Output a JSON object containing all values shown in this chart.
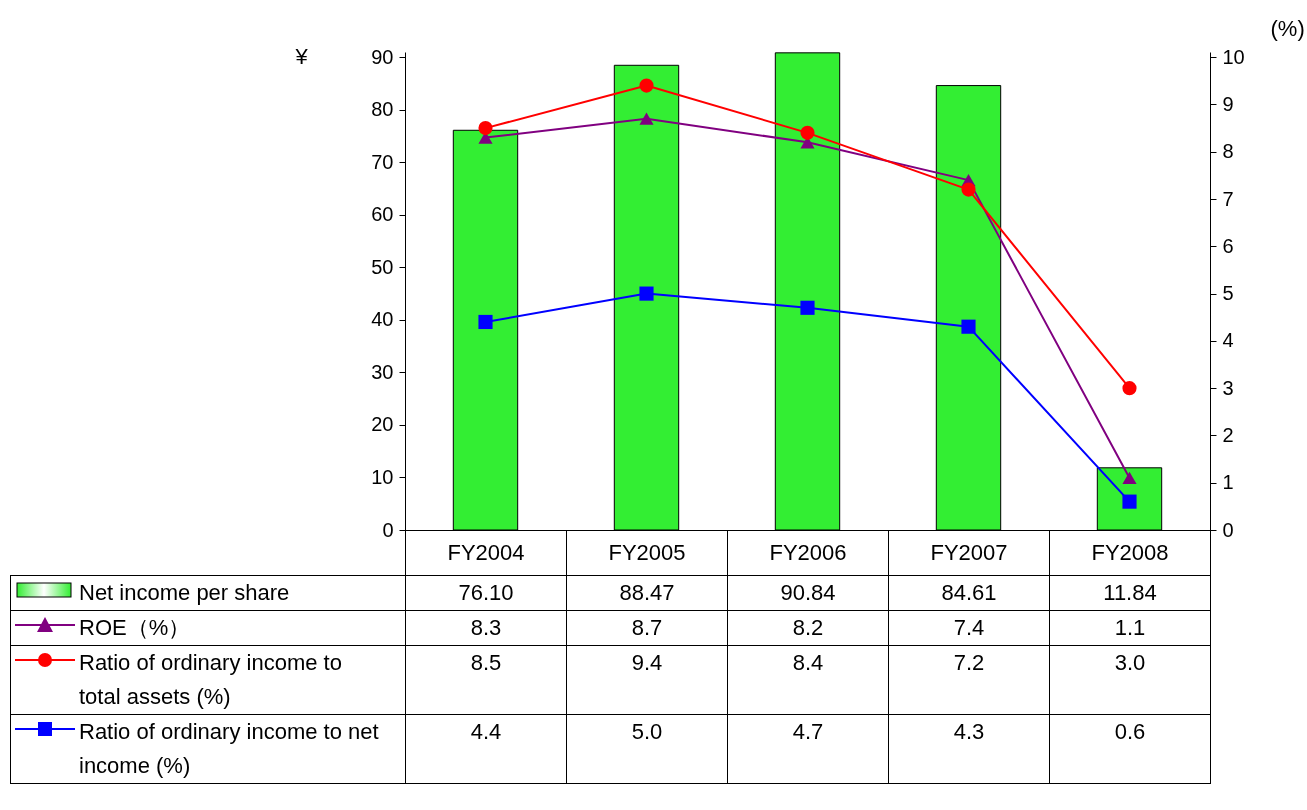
{
  "chart_data": {
    "type": "bar",
    "categories": [
      "FY2004",
      "FY2005",
      "FY2006",
      "FY2007",
      "FY2008"
    ],
    "ylabel": "¥",
    "y2label": "(%)",
    "ylim": [
      0,
      91
    ],
    "yticks": [
      0,
      10,
      20,
      30,
      40,
      50,
      60,
      70,
      80,
      90
    ],
    "y2lim": [
      0,
      10.11
    ],
    "y2ticks": [
      0,
      1,
      2,
      3,
      4,
      5,
      6,
      7,
      8,
      9,
      10
    ],
    "grid": false,
    "legend": "bottom",
    "series": [
      {
        "name": "Net income per share",
        "color": "#33ee33",
        "values": [
          76.1,
          88.47,
          90.84,
          84.61,
          11.84
        ],
        "value_labels": [
          "76.10",
          "88.47",
          "90.84",
          "84.61",
          "11.84"
        ]
      },
      {
        "name": "ROE（%）",
        "type": "line",
        "axis": "y2",
        "marker": "triangle",
        "color": "#800080",
        "values": [
          8.3,
          8.7,
          8.2,
          7.4,
          1.1
        ],
        "value_labels": [
          "8.3",
          "8.7",
          "8.2",
          "7.4",
          "1.1"
        ]
      },
      {
        "name": "Ratio of ordinary income to total assets (%)",
        "type": "line",
        "axis": "y2",
        "marker": "circle",
        "color": "#ff0000",
        "values": [
          8.5,
          9.4,
          8.4,
          7.2,
          3.0
        ],
        "value_labels": [
          "8.5",
          "9.4",
          "8.4",
          "7.2",
          "3.0"
        ]
      },
      {
        "name": "Ratio of ordinary income to net income (%)",
        "type": "line",
        "axis": "y2",
        "marker": "square",
        "color": "#0000ff",
        "values": [
          4.4,
          5.0,
          4.7,
          4.3,
          0.6
        ],
        "value_labels": [
          "4.4",
          "5.0",
          "4.7",
          "4.3",
          "0.6"
        ]
      }
    ]
  }
}
